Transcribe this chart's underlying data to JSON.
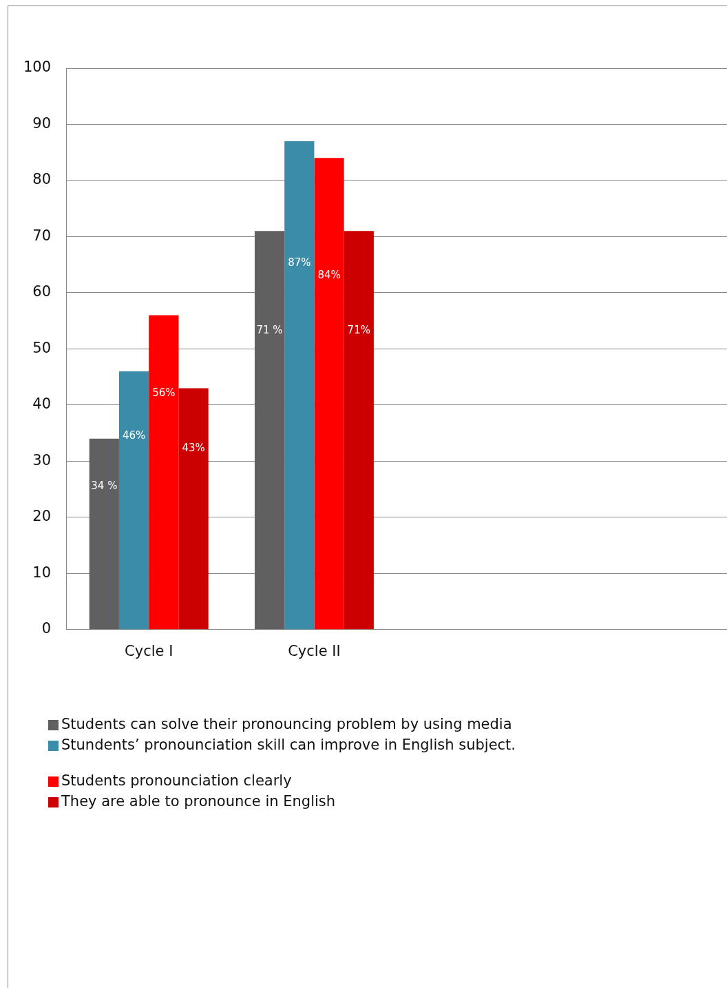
{
  "chart_data": {
    "type": "bar",
    "categories": [
      "Cycle I",
      "Cycle II",
      null,
      null
    ],
    "series": [
      {
        "name": "Students can solve their pronouncing problem by using media",
        "color": "#606060",
        "values": [
          34,
          71,
          null,
          null
        ],
        "value_labels": [
          "34 %",
          "71 %",
          null,
          null
        ]
      },
      {
        "name": "Stundents’ pronounciation skill can improve in English subject.",
        "color": "#3a8ca8",
        "values": [
          46,
          87,
          null,
          null
        ],
        "value_labels": [
          "46%",
          "87%",
          null,
          null
        ]
      },
      {
        "name": "Students pronounciation clearly",
        "color": "#ff0000",
        "values": [
          56,
          84,
          null,
          null
        ],
        "value_labels": [
          "56%",
          "84%",
          null,
          null
        ]
      },
      {
        "name": "They are able to pronounce in English",
        "color": "#cc0000",
        "values": [
          43,
          71,
          null,
          null
        ],
        "value_labels": [
          "43%",
          "71%",
          null,
          null
        ]
      }
    ],
    "ylim": [
      0,
      100
    ],
    "yticks": [
      0,
      10,
      20,
      30,
      40,
      50,
      60,
      70,
      80,
      90,
      100
    ],
    "grid": "y",
    "legend": "bottom"
  }
}
